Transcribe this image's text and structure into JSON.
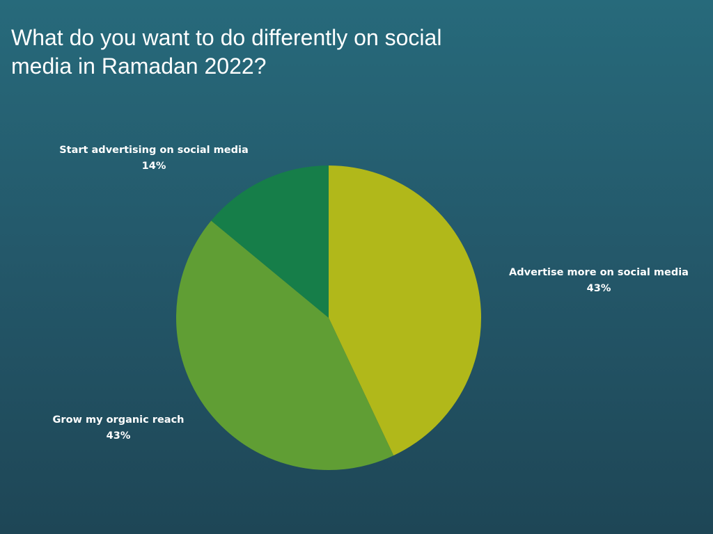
{
  "chart_data": {
    "type": "pie",
    "title": "What do you want to do differently on social media in Ramadan 2022?",
    "slices": [
      {
        "label": "Advertise more on  social media",
        "value": 43,
        "value_label": "43%",
        "color": "#b1b81a"
      },
      {
        "label": "Grow my organic reach",
        "value": 43,
        "value_label": "43%",
        "color": "#609e34"
      },
      {
        "label": "Start advertising on social media",
        "value": 14,
        "value_label": "14%",
        "color": "#167e49"
      }
    ],
    "start": "12 o'clock",
    "direction": "clockwise",
    "legend": "none"
  }
}
